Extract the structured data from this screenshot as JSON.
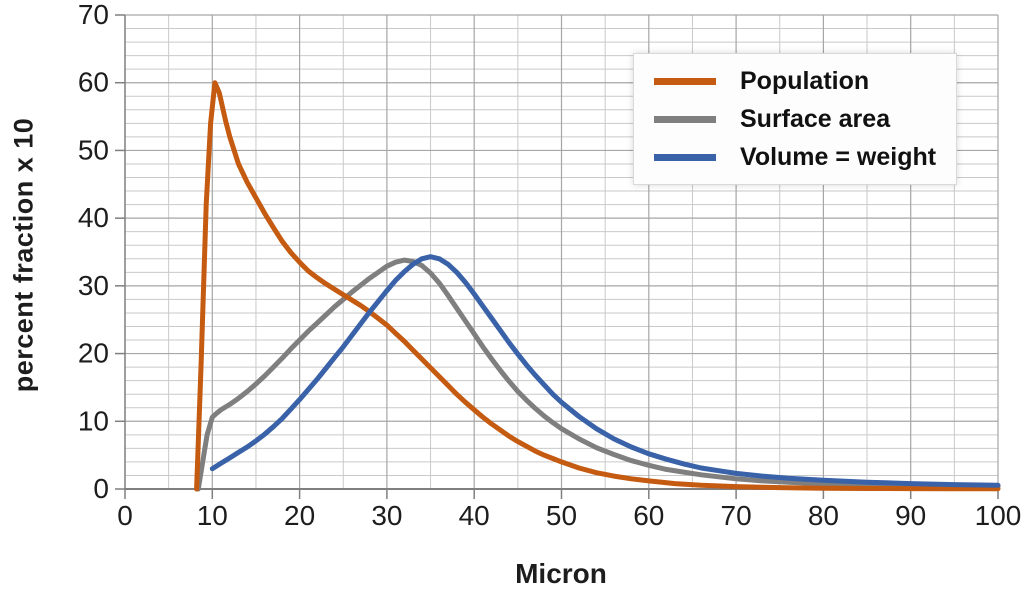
{
  "chart_data": {
    "type": "line",
    "title": "",
    "xlabel": "Micron",
    "ylabel": "percent fraction x 10",
    "xlim": [
      0,
      100
    ],
    "ylim": [
      0,
      70
    ],
    "x_major_ticks": [
      0,
      10,
      20,
      30,
      40,
      50,
      60,
      70,
      80,
      90,
      100
    ],
    "y_major_ticks": [
      0,
      10,
      20,
      30,
      40,
      50,
      60,
      70
    ],
    "x_minor_step": 5,
    "y_minor_step": 2,
    "grid": "major and minor gridlines on",
    "legend_position": "top-right inside plot",
    "series": [
      {
        "name": "Population",
        "color": "#C55A11",
        "z": 2,
        "points": [
          [
            8.2,
            0
          ],
          [
            8.7,
            18
          ],
          [
            9.3,
            42
          ],
          [
            9.8,
            54
          ],
          [
            10.3,
            60
          ],
          [
            10.8,
            58.5
          ],
          [
            11.5,
            54.5
          ],
          [
            12,
            52
          ],
          [
            13,
            48
          ],
          [
            14,
            45.3
          ],
          [
            15,
            43
          ],
          [
            16,
            40.7
          ],
          [
            17,
            38.6
          ],
          [
            18,
            36.6
          ],
          [
            19,
            34.9
          ],
          [
            20,
            33.5
          ],
          [
            21,
            32.2
          ],
          [
            22,
            31.2
          ],
          [
            23,
            30.3
          ],
          [
            24,
            29.5
          ],
          [
            25,
            28.7
          ],
          [
            26,
            27.9
          ],
          [
            27,
            27.1
          ],
          [
            28,
            26.2
          ],
          [
            29,
            25.2
          ],
          [
            30,
            24.2
          ],
          [
            31,
            23
          ],
          [
            32,
            21.8
          ],
          [
            33,
            20.5
          ],
          [
            34,
            19.2
          ],
          [
            35,
            17.9
          ],
          [
            36,
            16.6
          ],
          [
            37,
            15.3
          ],
          [
            38,
            14
          ],
          [
            39,
            12.8
          ],
          [
            40,
            11.7
          ],
          [
            41,
            10.6
          ],
          [
            42,
            9.6
          ],
          [
            43,
            8.7
          ],
          [
            44,
            7.8
          ],
          [
            45,
            7
          ],
          [
            46,
            6.3
          ],
          [
            47,
            5.6
          ],
          [
            48,
            5
          ],
          [
            49,
            4.5
          ],
          [
            50,
            4
          ],
          [
            52,
            3.1
          ],
          [
            54,
            2.4
          ],
          [
            56,
            1.9
          ],
          [
            58,
            1.5
          ],
          [
            60,
            1.2
          ],
          [
            63,
            0.8
          ],
          [
            66,
            0.55
          ],
          [
            70,
            0.35
          ],
          [
            75,
            0.2
          ],
          [
            80,
            0.12
          ],
          [
            85,
            0.08
          ],
          [
            90,
            0.06
          ],
          [
            95,
            0.05
          ],
          [
            100,
            0.05
          ]
        ]
      },
      {
        "name": "Surface area",
        "color": "#7F7F7F",
        "z": 1,
        "points": [
          [
            8.4,
            0
          ],
          [
            8.9,
            4
          ],
          [
            9.4,
            8
          ],
          [
            10,
            10.6
          ],
          [
            10.5,
            11.2
          ],
          [
            11,
            11.7
          ],
          [
            12,
            12.5
          ],
          [
            13,
            13.4
          ],
          [
            14,
            14.4
          ],
          [
            15,
            15.5
          ],
          [
            16,
            16.7
          ],
          [
            17,
            18
          ],
          [
            18,
            19.3
          ],
          [
            19,
            20.7
          ],
          [
            20,
            22
          ],
          [
            21,
            23.3
          ],
          [
            22,
            24.5
          ],
          [
            23,
            25.7
          ],
          [
            24,
            26.9
          ],
          [
            25,
            28
          ],
          [
            26,
            29.1
          ],
          [
            27,
            30.1
          ],
          [
            28,
            31.1
          ],
          [
            29,
            32
          ],
          [
            30,
            32.9
          ],
          [
            31,
            33.5
          ],
          [
            32,
            33.8
          ],
          [
            33,
            33.6
          ],
          [
            34,
            33
          ],
          [
            35,
            31.9
          ],
          [
            36,
            30.4
          ],
          [
            37,
            28.6
          ],
          [
            38,
            26.7
          ],
          [
            39,
            24.8
          ],
          [
            40,
            22.9
          ],
          [
            41,
            21
          ],
          [
            42,
            19.2
          ],
          [
            43,
            17.5
          ],
          [
            44,
            15.9
          ],
          [
            45,
            14.4
          ],
          [
            46,
            13.1
          ],
          [
            47,
            11.9
          ],
          [
            48,
            10.8
          ],
          [
            49,
            9.8
          ],
          [
            50,
            8.9
          ],
          [
            52,
            7.4
          ],
          [
            54,
            6.1
          ],
          [
            56,
            5.1
          ],
          [
            58,
            4.2
          ],
          [
            60,
            3.5
          ],
          [
            62,
            2.9
          ],
          [
            64,
            2.5
          ],
          [
            66,
            2.1
          ],
          [
            68,
            1.8
          ],
          [
            70,
            1.5
          ],
          [
            73,
            1.2
          ],
          [
            76,
            1
          ],
          [
            80,
            0.75
          ],
          [
            85,
            0.6
          ],
          [
            90,
            0.5
          ],
          [
            95,
            0.42
          ],
          [
            100,
            0.38
          ]
        ]
      },
      {
        "name": "Volume = weight",
        "color": "#3A62A8",
        "z": 3,
        "points": [
          [
            10,
            3
          ],
          [
            11,
            3.8
          ],
          [
            12,
            4.6
          ],
          [
            13,
            5.4
          ],
          [
            14,
            6.2
          ],
          [
            15,
            7.1
          ],
          [
            16,
            8.1
          ],
          [
            17,
            9.2
          ],
          [
            18,
            10.4
          ],
          [
            19,
            11.8
          ],
          [
            20,
            13.2
          ],
          [
            21,
            14.7
          ],
          [
            22,
            16.2
          ],
          [
            23,
            17.8
          ],
          [
            24,
            19.4
          ],
          [
            25,
            21
          ],
          [
            26,
            22.7
          ],
          [
            27,
            24.4
          ],
          [
            28,
            26.1
          ],
          [
            29,
            27.7
          ],
          [
            30,
            29.3
          ],
          [
            31,
            30.8
          ],
          [
            32,
            32.1
          ],
          [
            33,
            33.2
          ],
          [
            34,
            34
          ],
          [
            35,
            34.3
          ],
          [
            36,
            34
          ],
          [
            37,
            33.2
          ],
          [
            38,
            32
          ],
          [
            39,
            30.5
          ],
          [
            40,
            28.8
          ],
          [
            41,
            27
          ],
          [
            42,
            25.2
          ],
          [
            43,
            23.4
          ],
          [
            44,
            21.6
          ],
          [
            45,
            19.9
          ],
          [
            46,
            18.3
          ],
          [
            47,
            16.8
          ],
          [
            48,
            15.4
          ],
          [
            49,
            14
          ],
          [
            50,
            12.8
          ],
          [
            52,
            10.7
          ],
          [
            54,
            8.9
          ],
          [
            56,
            7.4
          ],
          [
            58,
            6.2
          ],
          [
            60,
            5.2
          ],
          [
            62,
            4.4
          ],
          [
            64,
            3.7
          ],
          [
            66,
            3.1
          ],
          [
            68,
            2.7
          ],
          [
            70,
            2.3
          ],
          [
            73,
            1.9
          ],
          [
            76,
            1.6
          ],
          [
            80,
            1.3
          ],
          [
            85,
            1
          ],
          [
            90,
            0.8
          ],
          [
            95,
            0.65
          ],
          [
            100,
            0.55
          ]
        ]
      }
    ]
  },
  "styles": {
    "background": "#FFFFFF",
    "grid_major_color": "#A6A6A6",
    "grid_minor_color": "#C9C9C9",
    "axis_color": "#7F7F7F",
    "tick_label_color": "#1D1D1D",
    "line_width": 5,
    "tick_font_size": 28
  }
}
